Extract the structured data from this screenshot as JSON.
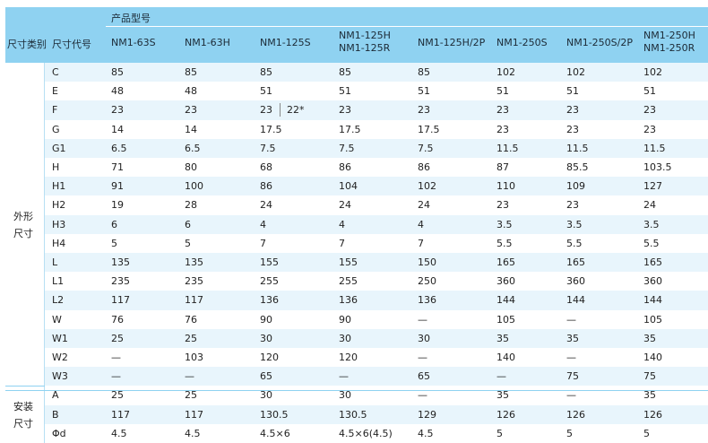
{
  "header": {
    "product_model": "产品型号",
    "size_category": "尺寸类别",
    "size_code": "尺寸代号",
    "models": [
      {
        "line1": "NM1-63S",
        "line2": ""
      },
      {
        "line1": "NM1-63H",
        "line2": ""
      },
      {
        "line1": "NM1-125S",
        "line2": ""
      },
      {
        "line1": "NM1-125H",
        "line2": "NM1-125R"
      },
      {
        "line1": "NM1-125H/2P",
        "line2": ""
      },
      {
        "line1": "NM1-250S",
        "line2": ""
      },
      {
        "line1": "NM1-250S/2P",
        "line2": ""
      },
      {
        "line1": "NM1-250H",
        "line2": "NM1-250R"
      }
    ]
  },
  "groups": [
    {
      "label_line1": "外形",
      "label_line2": "尺寸"
    },
    {
      "label_line1": "安装",
      "label_line2": "尺寸"
    }
  ],
  "rows": [
    {
      "code": "C",
      "values": [
        "85",
        "85",
        "85",
        "85",
        "85",
        "102",
        "102",
        "102"
      ],
      "extra": ""
    },
    {
      "code": "E",
      "values": [
        "48",
        "48",
        "51",
        "51",
        "51",
        "51",
        "51",
        "51"
      ],
      "extra": ""
    },
    {
      "code": "F",
      "values": [
        "23",
        "23",
        "23",
        "23",
        "23",
        "23",
        "23",
        "23"
      ],
      "extra": "22*"
    },
    {
      "code": "G",
      "values": [
        "14",
        "14",
        "17.5",
        "17.5",
        "17.5",
        "23",
        "23",
        "23"
      ],
      "extra": ""
    },
    {
      "code": "G1",
      "values": [
        "6.5",
        "6.5",
        "7.5",
        "7.5",
        "7.5",
        "11.5",
        "11.5",
        "11.5"
      ],
      "extra": ""
    },
    {
      "code": "H",
      "values": [
        "71",
        "80",
        "68",
        "86",
        "86",
        "87",
        "85.5",
        "103.5"
      ],
      "extra": ""
    },
    {
      "code": "H1",
      "values": [
        "91",
        "100",
        "86",
        "104",
        "102",
        "110",
        "109",
        "127"
      ],
      "extra": ""
    },
    {
      "code": "H2",
      "values": [
        "19",
        "28",
        "24",
        "24",
        "24",
        "23",
        "23",
        "24"
      ],
      "extra": ""
    },
    {
      "code": "H3",
      "values": [
        "6",
        "6",
        "4",
        "4",
        "4",
        "3.5",
        "3.5",
        "3.5"
      ],
      "extra": ""
    },
    {
      "code": "H4",
      "values": [
        "5",
        "5",
        "7",
        "7",
        "7",
        "5.5",
        "5.5",
        "5.5"
      ],
      "extra": ""
    },
    {
      "code": "L",
      "values": [
        "135",
        "135",
        "155",
        "155",
        "150",
        "165",
        "165",
        "165"
      ],
      "extra": ""
    },
    {
      "code": "L1",
      "values": [
        "235",
        "235",
        "255",
        "255",
        "250",
        "360",
        "360",
        "360"
      ],
      "extra": ""
    },
    {
      "code": "L2",
      "values": [
        "117",
        "117",
        "136",
        "136",
        "136",
        "144",
        "144",
        "144"
      ],
      "extra": ""
    },
    {
      "code": "W",
      "values": [
        "76",
        "76",
        "90",
        "90",
        "—",
        "105",
        "—",
        "105"
      ],
      "extra": ""
    },
    {
      "code": "W1",
      "values": [
        "25",
        "25",
        "30",
        "30",
        "30",
        "35",
        "35",
        "35"
      ],
      "extra": ""
    },
    {
      "code": "W2",
      "values": [
        "—",
        "103",
        "120",
        "120",
        "—",
        "140",
        "—",
        "140"
      ],
      "extra": ""
    },
    {
      "code": "W3",
      "values": [
        "—",
        "—",
        "65",
        "—",
        "65",
        "—",
        "75",
        "75"
      ],
      "extra": ""
    },
    {
      "code": "A",
      "values": [
        "25",
        "25",
        "30",
        "30",
        "—",
        "35",
        "—",
        "35"
      ],
      "extra": ""
    },
    {
      "code": "B",
      "values": [
        "117",
        "117",
        "130.5",
        "130.5",
        "129",
        "126",
        "126",
        "126"
      ],
      "extra": ""
    },
    {
      "code": "Φd",
      "values": [
        "4.5",
        "4.5",
        "4.5×6",
        "4.5×6(4.5)",
        "4.5",
        "5",
        "5",
        "5"
      ],
      "extra": ""
    }
  ]
}
